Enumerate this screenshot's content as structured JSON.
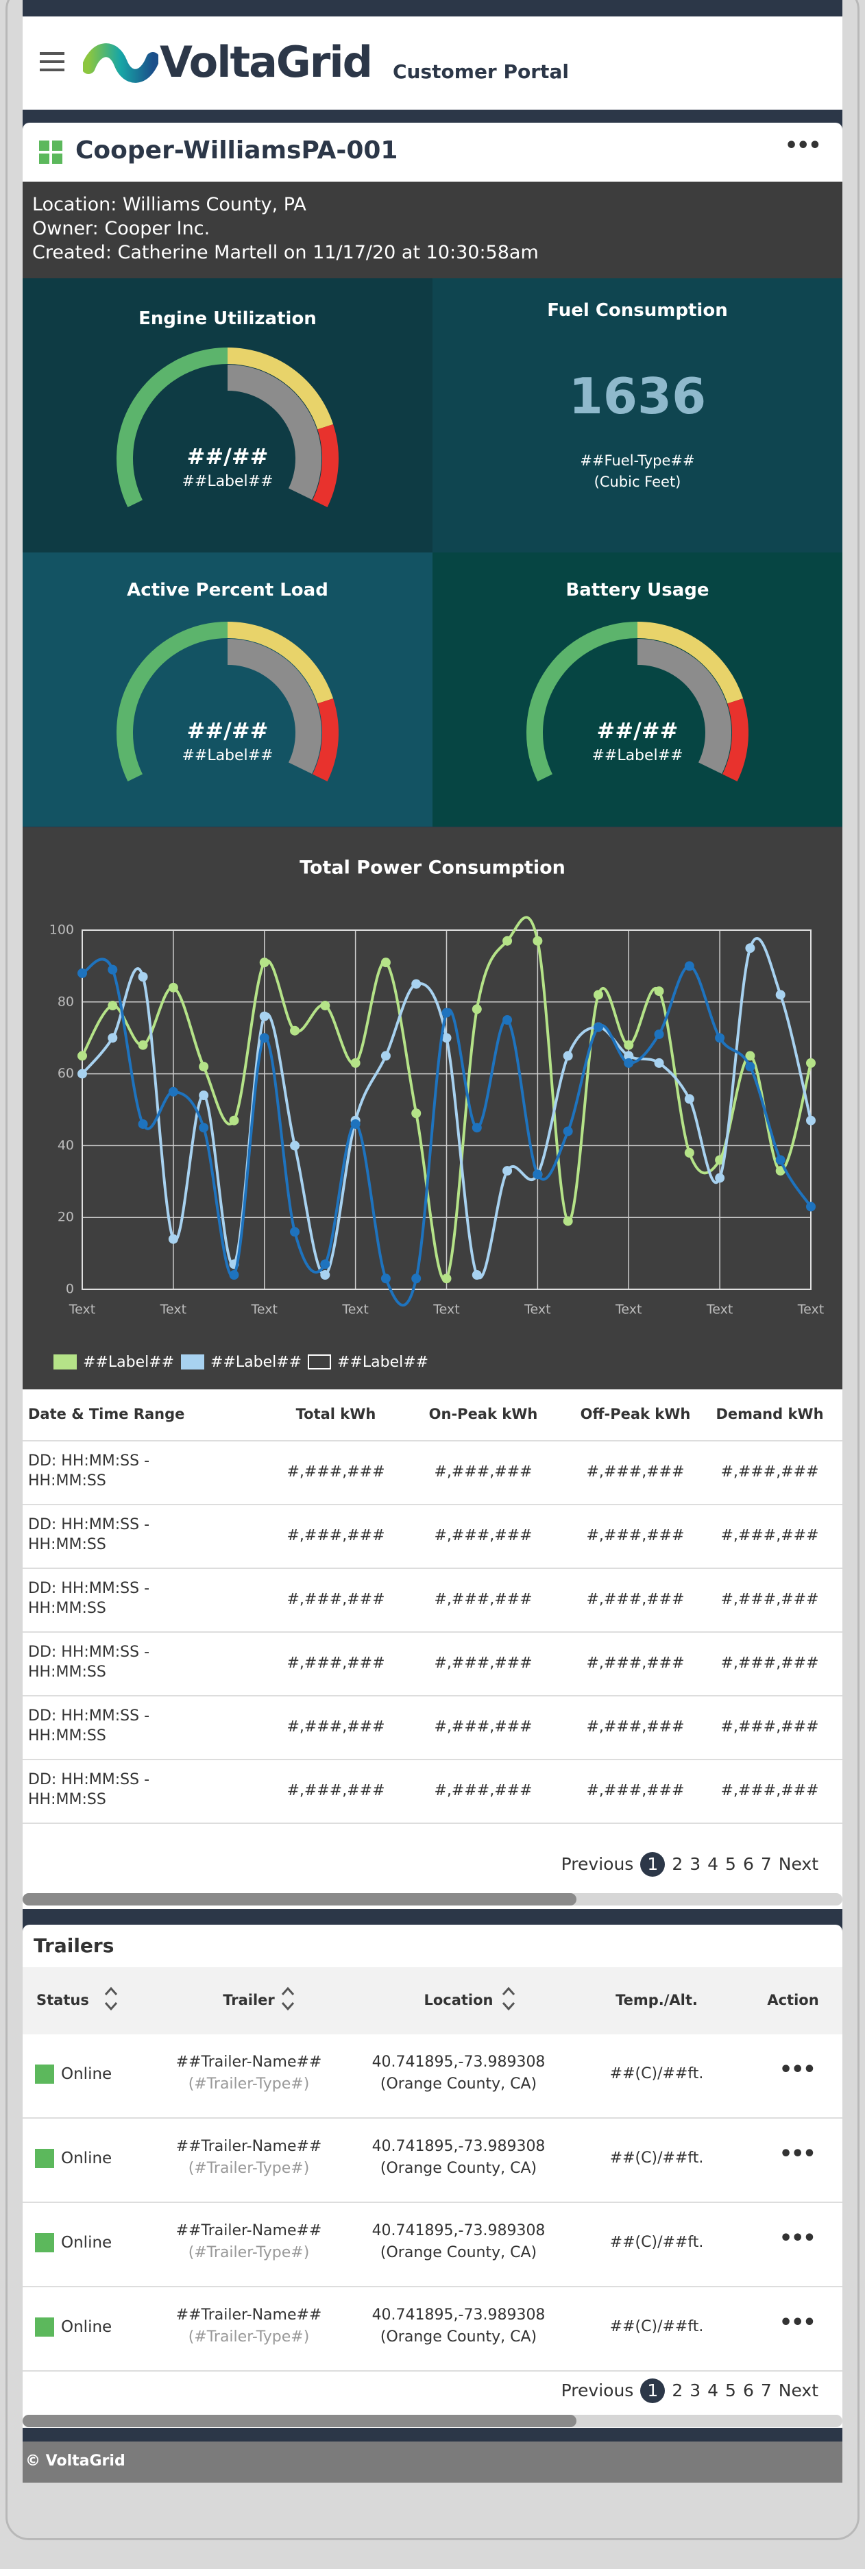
{
  "header": {
    "brand": "VoltaGrid",
    "portal": "Customer Portal"
  },
  "asset": {
    "title": "Cooper-WilliamsPA-001",
    "info": [
      "Location: Williams County, PA",
      "Owner: Cooper Inc.",
      "Created: Catherine Martell on 11/17/20 at 10:30:58am"
    ]
  },
  "gauges": [
    {
      "title": "Engine Utilization",
      "value": "##/##",
      "label": "##Label##"
    },
    {
      "title": "Active Percent Load",
      "value": "##/##",
      "label": "##Label##"
    },
    {
      "title": "Battery Usage",
      "value": "##/##",
      "label": "##Label##"
    }
  ],
  "fuel": {
    "title": "Fuel Consumption",
    "value": 1636,
    "type": "##Fuel-Type##",
    "unit": "(Cubic Feet)"
  },
  "chart_data": {
    "type": "line",
    "title": "Total Power Consumption",
    "x": [
      0,
      1,
      2,
      3,
      4,
      5,
      6,
      7,
      8,
      9,
      10,
      11,
      12,
      13,
      14,
      15,
      16,
      17,
      18,
      19,
      20,
      21,
      22,
      23,
      24
    ],
    "xlim": [
      0,
      24
    ],
    "xticks": [
      {
        "value": 0,
        "label": "Text"
      },
      {
        "value": 3,
        "label": "Text"
      },
      {
        "value": 6,
        "label": "Text"
      },
      {
        "value": 9,
        "label": "Text"
      },
      {
        "value": 12,
        "label": "Text"
      },
      {
        "value": 15,
        "label": "Text"
      },
      {
        "value": 18,
        "label": "Text"
      },
      {
        "value": 21,
        "label": "Text"
      },
      {
        "value": 24,
        "label": "Text"
      }
    ],
    "ylim": [
      0,
      100
    ],
    "yticks": [
      0,
      20,
      40,
      60,
      80,
      100
    ],
    "grid": true,
    "series": [
      {
        "name": "##Label##",
        "color": "#b5e388",
        "values": [
          65,
          79,
          68,
          84,
          62,
          47,
          91,
          72,
          79,
          63,
          91,
          49,
          3,
          78,
          97,
          97,
          19,
          82,
          68,
          83,
          38,
          36,
          65,
          33,
          63
        ]
      },
      {
        "name": "##Label##",
        "color": "#a8d2f0",
        "values": [
          60,
          70,
          87,
          14,
          54,
          7,
          76,
          40,
          4,
          47,
          65,
          85,
          70,
          4,
          33,
          32,
          65,
          73,
          65,
          63,
          53,
          31,
          95,
          82,
          47
        ]
      },
      {
        "name": "##Label##",
        "color": "#1e73be",
        "values": [
          88,
          89,
          46,
          55,
          45,
          4,
          70,
          16,
          7,
          46,
          3,
          3,
          77,
          45,
          75,
          32,
          44,
          73,
          63,
          71,
          90,
          70,
          62,
          36,
          23
        ]
      }
    ]
  },
  "energy_table": {
    "columns": [
      "Date & Time Range",
      "Total kWh",
      "On-Peak kWh",
      "Off-Peak kWh",
      "Demand  kWh"
    ],
    "rows": [
      [
        "DD: HH:MM:SS - HH:MM:SS",
        "#,###,###",
        "#,###,###",
        "#,###,###",
        "#,###,###"
      ],
      [
        "DD: HH:MM:SS - HH:MM:SS",
        "#,###,###",
        "#,###,###",
        "#,###,###",
        "#,###,###"
      ],
      [
        "DD: HH:MM:SS - HH:MM:SS",
        "#,###,###",
        "#,###,###",
        "#,###,###",
        "#,###,###"
      ],
      [
        "DD: HH:MM:SS - HH:MM:SS",
        "#,###,###",
        "#,###,###",
        "#,###,###",
        "#,###,###"
      ],
      [
        "DD: HH:MM:SS - HH:MM:SS",
        "#,###,###",
        "#,###,###",
        "#,###,###",
        "#,###,###"
      ],
      [
        "DD: HH:MM:SS - HH:MM:SS",
        "#,###,###",
        "#,###,###",
        "#,###,###",
        "#,###,###"
      ]
    ],
    "pagination": {
      "previous": "Previous",
      "pages": [
        1,
        2,
        3,
        4,
        5,
        6,
        7
      ],
      "next": "Next"
    }
  },
  "trailers": {
    "title": "Trailers",
    "columns": [
      "Status",
      "Trailer",
      "Location",
      "Temp./Alt.",
      "Action"
    ],
    "rows": [
      {
        "status": "Online",
        "name": "##Trailer-Name##",
        "type": "(#Trailer-Type#)",
        "coords": "40.741895,-73.989308",
        "place": "(Orange County, CA)",
        "temp": "##(C)/##ft."
      },
      {
        "status": "Online",
        "name": "##Trailer-Name##",
        "type": "(#Trailer-Type#)",
        "coords": "40.741895,-73.989308",
        "place": "(Orange County, CA)",
        "temp": "##(C)/##ft."
      },
      {
        "status": "Online",
        "name": "##Trailer-Name##",
        "type": "(#Trailer-Type#)",
        "coords": "40.741895,-73.989308",
        "place": "(Orange County, CA)",
        "temp": "##(C)/##ft."
      },
      {
        "status": "Online",
        "name": "##Trailer-Name##",
        "type": "(#Trailer-Type#)",
        "coords": "40.741895,-73.989308",
        "place": "(Orange County, CA)",
        "temp": "##(C)/##ft."
      }
    ],
    "pagination": {
      "previous": "Previous",
      "pages": [
        1,
        2,
        3,
        4,
        5,
        6,
        7
      ],
      "next": "Next"
    }
  },
  "footer": "© VoltaGrid"
}
